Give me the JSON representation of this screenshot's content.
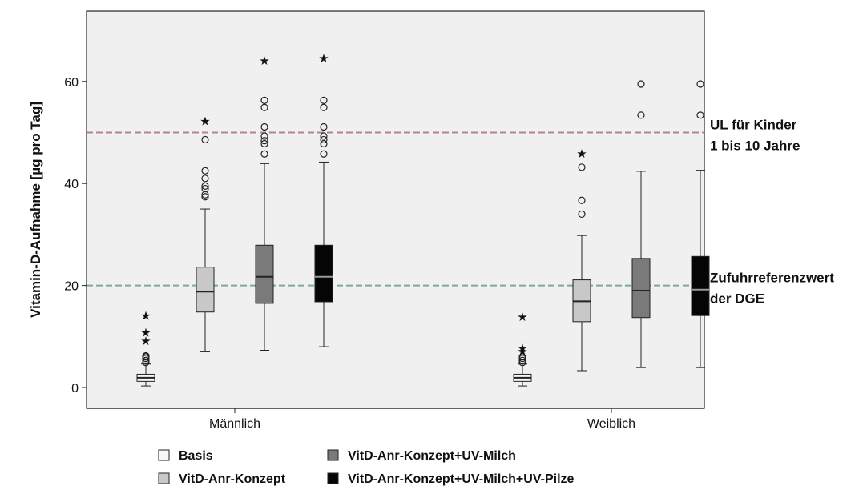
{
  "chart_data": {
    "type": "boxplot",
    "ylabel": "Vitamin-D-Aufnahme [µg pro Tag]",
    "ylim": [
      -4,
      73
    ],
    "yticks": [
      0,
      20,
      40,
      60
    ],
    "categories": [
      "Männlich",
      "Weiblich"
    ],
    "grid": false,
    "legend_placement": "bottom",
    "reference_lines": [
      {
        "y": 50,
        "labels": [
          "UL für Kinder",
          "1 bis 10 Jahre"
        ],
        "color": "#b5838d"
      },
      {
        "y": 20,
        "labels": [
          "Zufuhrreferenzwert",
          "der DGE"
        ],
        "color": "#7fa8a0"
      }
    ],
    "series": [
      {
        "name": "Basis",
        "color": "#f7f7f7",
        "median_color": "#222222",
        "boxes": [
          {
            "min": 0.3,
            "q1": 1.2,
            "median": 1.9,
            "q3": 2.6,
            "max": 4.6,
            "outliers": [
              4.9,
              5.3,
              5.7,
              6.0,
              6.2
            ],
            "extremes": [
              9.6,
              11.2,
              14.5
            ]
          },
          {
            "min": 0.3,
            "q1": 1.2,
            "median": 1.9,
            "q3": 2.6,
            "max": 4.6,
            "outliers": [
              4.9,
              5.3,
              5.7,
              6.0
            ],
            "extremes": [
              7.5,
              8.2,
              14.3
            ]
          }
        ]
      },
      {
        "name": "VitD-Anr-Konzept",
        "color": "#c8c8c8",
        "median_color": "#222222",
        "boxes": [
          {
            "min": 7.0,
            "q1": 14.8,
            "median": 18.8,
            "q3": 23.6,
            "max": 35.0,
            "outliers": [
              37.4,
              37.8,
              39.0,
              39.5,
              41.0,
              42.5,
              48.6
            ],
            "extremes": [
              52.7
            ]
          },
          {
            "min": 3.3,
            "q1": 12.9,
            "median": 16.9,
            "q3": 21.1,
            "max": 29.8,
            "outliers": [
              34.0,
              36.7,
              43.2
            ],
            "extremes": [
              46.3
            ]
          }
        ]
      },
      {
        "name": "VitD-Anr-Konzept+UV-Milch",
        "color": "#7a7a7a",
        "median_color": "#222222",
        "boxes": [
          {
            "min": 7.3,
            "q1": 16.5,
            "median": 21.7,
            "q3": 27.9,
            "max": 43.9,
            "outliers": [
              45.8,
              47.8,
              48.4,
              49.3,
              51.1,
              54.9,
              56.3
            ],
            "extremes": [
              64.5
            ]
          },
          {
            "min": 3.9,
            "q1": 13.7,
            "median": 19.0,
            "q3": 25.3,
            "max": 42.4,
            "outliers": [
              53.4,
              59.5
            ],
            "extremes": []
          }
        ]
      },
      {
        "name": "VitD-Anr-Konzept+UV-Milch+UV-Pilze",
        "color": "#050505",
        "median_color": "#9a9a9a",
        "boxes": [
          {
            "min": 8.0,
            "q1": 16.8,
            "median": 21.7,
            "q3": 27.9,
            "max": 44.2,
            "outliers": [
              45.8,
              47.8,
              48.6,
              49.3,
              51.1,
              54.9,
              56.3
            ],
            "extremes": [
              65.0
            ]
          },
          {
            "min": 3.9,
            "q1": 14.1,
            "median": 19.2,
            "q3": 25.7,
            "max": 42.6,
            "outliers": [
              53.4,
              59.5
            ],
            "extremes": []
          }
        ]
      }
    ]
  }
}
